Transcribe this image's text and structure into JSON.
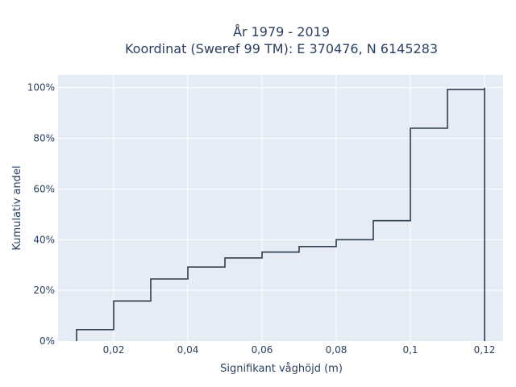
{
  "title": "År 1979 - 2019",
  "subtitle": "Koordinat (Sweref 99 TM): E 370476, N 6145283",
  "chart_data": {
    "type": "line",
    "line_shape": "step",
    "title": "År 1979 - 2019",
    "subtitle": "Koordinat (Sweref 99 TM): E 370476, N 6145283",
    "xlabel": "Signifikant våghöjd (m)",
    "ylabel": "Kumulativ andel",
    "xlim": [
      0.005,
      0.125
    ],
    "ylim": [
      0,
      1.05
    ],
    "x_ticks": [
      0.02,
      0.04,
      0.06,
      0.08,
      0.1,
      0.12
    ],
    "x_tick_labels": [
      "0,02",
      "0,04",
      "0,06",
      "0,08",
      "0,1",
      "0,12"
    ],
    "y_ticks": [
      0,
      0.2,
      0.4,
      0.6,
      0.8,
      1.0
    ],
    "y_tick_labels": [
      "0%",
      "20%",
      "40%",
      "60%",
      "80%",
      "100%"
    ],
    "grid": true,
    "background_color": "#e5ecf6",
    "line_color": "#2f3e4f",
    "series": [
      {
        "x": [
          0.01,
          0.02,
          0.03,
          0.04,
          0.05,
          0.06,
          0.07,
          0.08,
          0.09,
          0.1,
          0.11,
          0.12
        ],
        "values": [
          0.045,
          0.158,
          0.245,
          0.292,
          0.328,
          0.351,
          0.373,
          0.4,
          0.475,
          0.84,
          0.993,
          1.0
        ]
      }
    ]
  }
}
